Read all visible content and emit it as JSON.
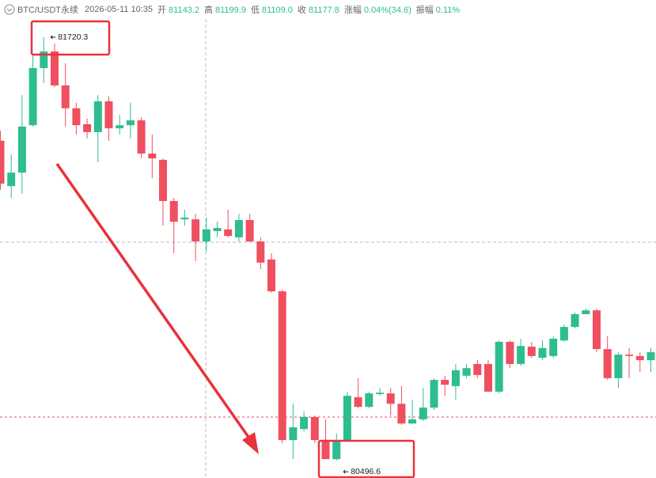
{
  "header": {
    "symbol": "BTC/USDT永续",
    "time": "2026-05-11 10:35",
    "items": [
      {
        "label": "开",
        "value": "81143.2"
      },
      {
        "label": "高",
        "value": "81199.9"
      },
      {
        "label": "低",
        "value": "81109.0"
      },
      {
        "label": "收",
        "value": "81177.8"
      },
      {
        "label": "涨幅",
        "value": "0.04%(34.6)"
      },
      {
        "label": "振幅",
        "value": "0.11%"
      }
    ]
  },
  "chart_data": {
    "type": "candlestick",
    "up_color": "#2dbd8f",
    "down_color": "#ef4f5f",
    "ylim": [
      80446.5,
      81827.8
    ],
    "annotations": [
      81720.3,
      80496.6
    ],
    "open": [
      81421,
      81290,
      81329,
      81466,
      81631,
      81679,
      81581,
      81515,
      81469,
      81446,
      81535,
      81457,
      81466,
      81480,
      81384,
      81366,
      81247,
      81194,
      81194,
      81130,
      81160,
      81165,
      81142,
      81192,
      81130,
      81078,
      80986,
      80556,
      80588,
      80623,
      80556,
      80501,
      80556,
      80680,
      80652,
      80689,
      80691,
      80661,
      80604,
      80616,
      80650,
      80730,
      80712,
      80742,
      80776,
      80776,
      80696,
      80840,
      80776,
      80826,
      80794,
      80799,
      80844,
      80883,
      80920,
      80931,
      80819,
      80735,
      80803,
      80799,
      80787
    ],
    "high": [
      81450,
      81382,
      81553,
      81668,
      81720.3,
      81702,
      81645,
      81531,
      81485,
      81553,
      81549,
      81496,
      81531,
      81489,
      81439,
      81370,
      81256,
      81222,
      81210,
      81199,
      81187,
      81222,
      81210,
      81210,
      81142,
      81096,
      80991,
      80661,
      80639,
      80627,
      80616,
      80575,
      80696,
      80735,
      80696,
      80707,
      80707,
      80712,
      80673,
      80707,
      80735,
      80742,
      80776,
      80776,
      80787,
      80787,
      80844,
      80844,
      80849,
      80840,
      80844,
      80856,
      80890,
      80924,
      80936,
      80936,
      80856,
      80810,
      80822,
      80810,
      80822
    ],
    "low": [
      81279,
      81256,
      81268,
      81462,
      81588,
      81576,
      81462,
      81439,
      81428,
      81359,
      81421,
      81439,
      81428,
      81370,
      81313,
      81176,
      81096,
      81176,
      81073,
      81101,
      81142,
      81142,
      81130,
      81130,
      81050,
      80982,
      80547,
      80501,
      80581,
      80547,
      80501,
      80496.6,
      80552,
      80648,
      80648,
      80684,
      80627,
      80600,
      80604,
      80611,
      80643,
      80684,
      80673,
      80735,
      80735,
      80696,
      80691,
      80764,
      80771,
      80794,
      80787,
      80794,
      80840,
      80879,
      80920,
      80810,
      80730,
      80707,
      80735,
      80753,
      80753
    ],
    "close": [
      81297,
      81329,
      81462,
      81631,
      81679,
      81581,
      81515,
      81466,
      81446,
      81535,
      81457,
      81466,
      81480,
      81384,
      81370,
      81247,
      81187,
      81199,
      81130,
      81165,
      81169,
      81146,
      81192,
      81130,
      81069,
      80986,
      80556,
      80593,
      80623,
      80556,
      80501,
      80556,
      80684,
      80652,
      80691,
      80693,
      80661,
      80604,
      80616,
      80650,
      80730,
      80716,
      80758,
      80764,
      80744,
      80696,
      80840,
      80776,
      80828,
      80799,
      80822,
      80849,
      80883,
      80920,
      80931,
      80819,
      80735,
      80803,
      80799,
      80787,
      80810
    ]
  }
}
